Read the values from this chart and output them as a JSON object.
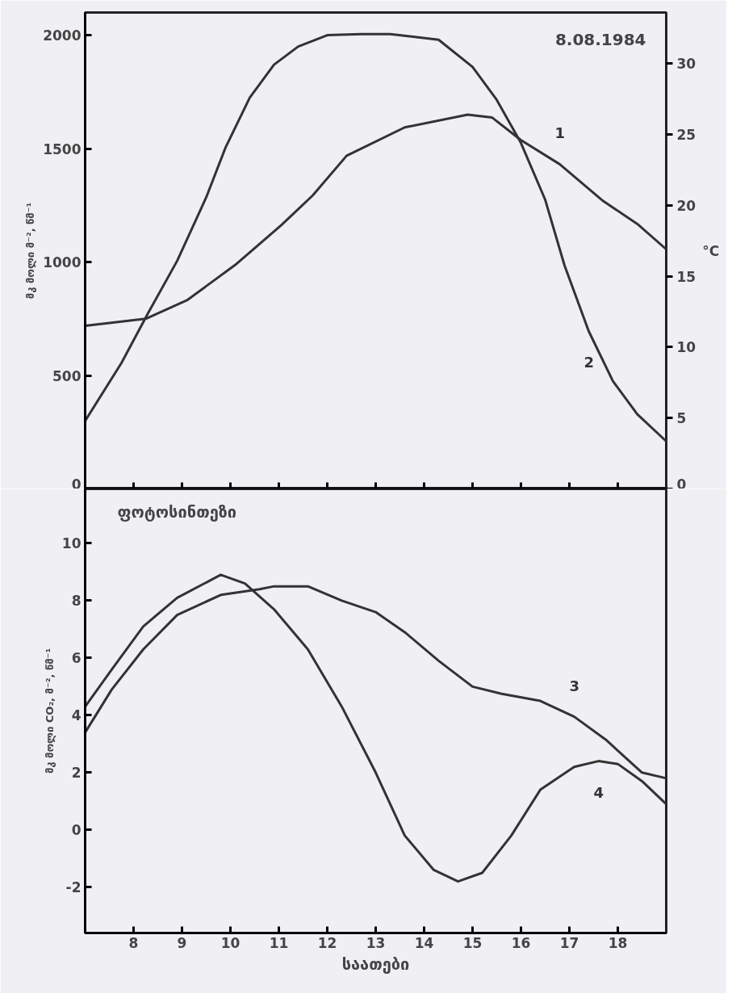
{
  "chart_data": [
    {
      "type": "line",
      "ylabel": "მკ მოლი მ⁻², წმ⁻¹",
      "y2label": "°C",
      "annotations": [
        "8.08.1984"
      ],
      "xlim": [
        7,
        19
      ],
      "xticks": [
        {
          "value": 8,
          "label": null
        },
        {
          "value": 9,
          "label": null
        },
        {
          "value": 10,
          "label": null
        },
        {
          "value": 11,
          "label": null
        },
        {
          "value": 12,
          "label": null
        },
        {
          "value": 13,
          "label": null
        },
        {
          "value": 14,
          "label": null
        },
        {
          "value": 15,
          "label": null
        },
        {
          "value": 16,
          "label": null
        },
        {
          "value": 17,
          "label": null
        },
        {
          "value": 18,
          "label": null
        }
      ],
      "ylim": [
        0,
        2100
      ],
      "yticks": [
        0,
        500,
        1000,
        1500,
        2000
      ],
      "y2lim": [
        0,
        33.6
      ],
      "y2ticks": [
        0,
        5,
        10,
        15,
        20,
        25,
        30
      ],
      "tick_labels": "y",
      "grid": false,
      "marker": "none",
      "line_style": "solid",
      "series": [
        {
          "name": "1",
          "color": "#333333",
          "axis": "y2",
          "x": [
            7.0,
            8.25,
            9.1,
            10.1,
            11.05,
            11.7,
            12.4,
            13.6,
            14.9,
            15.4,
            16.0,
            16.8,
            17.7,
            18.4,
            19.0
          ],
          "values": [
            11.5,
            12.0,
            13.3,
            15.8,
            18.6,
            20.7,
            23.5,
            25.5,
            26.4,
            26.2,
            24.6,
            22.9,
            20.3,
            18.7,
            16.9
          ]
        },
        {
          "name": "2",
          "color": "#333333",
          "x": [
            7.0,
            7.75,
            8.3,
            8.9,
            9.5,
            9.9,
            10.4,
            10.9,
            11.4,
            12.0,
            12.7,
            13.3,
            14.3,
            15.0,
            15.5,
            16.0,
            16.5,
            16.9,
            17.4,
            17.9,
            18.4,
            19.0
          ],
          "values": [
            300,
            555,
            775,
            1005,
            1285,
            1505,
            1725,
            1870,
            1950,
            2000,
            2005,
            2005,
            1980,
            1860,
            1715,
            1525,
            1275,
            985,
            695,
            475,
            330,
            210
          ]
        }
      ]
    },
    {
      "type": "line",
      "title": "ფოტოსინთეზი",
      "xlabel": "საათები",
      "ylabel": "მკ მოლი CO₂, მ⁻², წმ⁻¹",
      "xlim": [
        7,
        19
      ],
      "xticks": [
        8,
        9,
        10,
        11,
        12,
        13,
        14,
        15,
        16,
        17,
        18
      ],
      "ylim": [
        -3.6,
        11.9
      ],
      "yticks": [
        -2,
        0,
        2,
        4,
        6,
        8,
        10
      ],
      "grid": false,
      "marker": "none",
      "line_style": "solid",
      "series": [
        {
          "name": "3",
          "color": "#333333",
          "x": [
            7.0,
            7.55,
            8.2,
            8.9,
            9.8,
            10.6,
            10.9,
            11.6,
            12.3,
            13.0,
            13.6,
            14.3,
            15.0,
            15.6,
            16.4,
            17.1,
            17.75,
            18.5,
            19.0
          ],
          "values": [
            3.4,
            4.9,
            6.3,
            7.5,
            8.2,
            8.4,
            8.5,
            8.5,
            8.0,
            7.6,
            6.9,
            5.9,
            5.0,
            4.75,
            4.5,
            3.95,
            3.15,
            2.0,
            1.8
          ]
        },
        {
          "name": "4",
          "color": "#333333",
          "x": [
            7.0,
            7.55,
            8.2,
            8.9,
            9.8,
            10.3,
            10.9,
            11.6,
            12.3,
            13.0,
            13.6,
            14.2,
            14.7,
            15.2,
            15.8,
            16.4,
            17.1,
            17.6,
            18.0,
            18.5,
            19.0
          ],
          "values": [
            4.3,
            5.6,
            7.1,
            8.1,
            8.9,
            8.6,
            7.7,
            6.3,
            4.3,
            2.0,
            -0.2,
            -1.4,
            -1.8,
            -1.5,
            -0.2,
            1.4,
            2.2,
            2.4,
            2.3,
            1.7,
            0.9
          ]
        }
      ]
    }
  ]
}
